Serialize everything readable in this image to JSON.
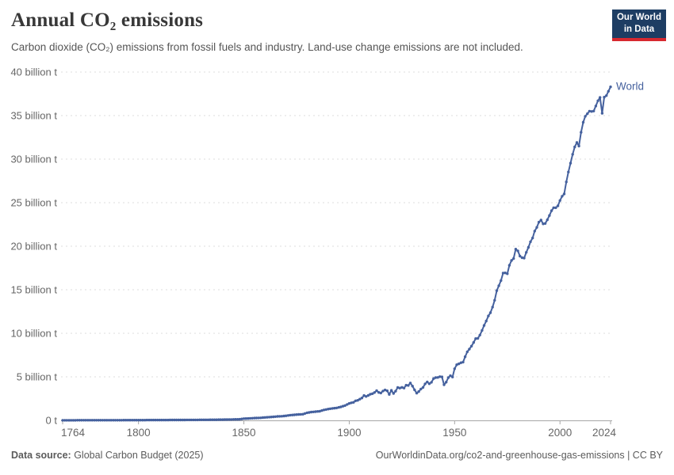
{
  "header": {
    "title": "Annual CO₂ emissions",
    "subtitle": "Carbon dioxide (CO₂) emissions from fossil fuels and industry. Land-use change emissions are not included.",
    "logo": {
      "line1": "Our World",
      "line2": "in Data",
      "bg_color": "#1d3d63",
      "accent_color": "#d7282f"
    }
  },
  "footer": {
    "source_label": "Data source:",
    "source_value": " Global Carbon Budget (2025)",
    "link": "OurWorldinData.org/co2-and-greenhouse-gas-emissions | CC BY"
  },
  "chart_data": {
    "type": "line",
    "title": "Annual CO₂ emissions",
    "xlabel": "",
    "ylabel": "",
    "xlim": [
      1764,
      2024
    ],
    "ylim": [
      0,
      40
    ],
    "grid": "horizontal-dashed",
    "legend_position": "end-of-line-label",
    "x_ticks": [
      1764,
      1800,
      1850,
      1900,
      1950,
      2000,
      2024
    ],
    "y_ticks": [
      0,
      5,
      10,
      15,
      20,
      25,
      30,
      35,
      40
    ],
    "y_tick_labels": [
      "0 t",
      "5 billion t",
      "10 billion t",
      "15 billion t",
      "20 billion t",
      "25 billion t",
      "30 billion t",
      "35 billion t",
      "40 billion t"
    ],
    "unit": "billion tonnes CO₂",
    "series": [
      {
        "name": "World",
        "color": "#45619E",
        "points": [
          [
            1764,
            0.012
          ],
          [
            1768,
            0.013
          ],
          [
            1772,
            0.014
          ],
          [
            1776,
            0.015
          ],
          [
            1780,
            0.016
          ],
          [
            1784,
            0.018
          ],
          [
            1788,
            0.02
          ],
          [
            1792,
            0.022
          ],
          [
            1796,
            0.026
          ],
          [
            1800,
            0.03
          ],
          [
            1804,
            0.032
          ],
          [
            1808,
            0.034
          ],
          [
            1812,
            0.038
          ],
          [
            1816,
            0.042
          ],
          [
            1820,
            0.047
          ],
          [
            1824,
            0.053
          ],
          [
            1828,
            0.058
          ],
          [
            1832,
            0.065
          ],
          [
            1836,
            0.073
          ],
          [
            1840,
            0.084
          ],
          [
            1844,
            0.1
          ],
          [
            1848,
            0.13
          ],
          [
            1850,
            0.197
          ],
          [
            1852,
            0.22
          ],
          [
            1854,
            0.25
          ],
          [
            1856,
            0.27
          ],
          [
            1858,
            0.29
          ],
          [
            1860,
            0.34
          ],
          [
            1862,
            0.37
          ],
          [
            1864,
            0.41
          ],
          [
            1866,
            0.45
          ],
          [
            1868,
            0.47
          ],
          [
            1870,
            0.53
          ],
          [
            1872,
            0.6
          ],
          [
            1874,
            0.64
          ],
          [
            1876,
            0.68
          ],
          [
            1878,
            0.71
          ],
          [
            1880,
            0.87
          ],
          [
            1882,
            0.95
          ],
          [
            1884,
            1.0
          ],
          [
            1886,
            1.05
          ],
          [
            1888,
            1.2
          ],
          [
            1890,
            1.3
          ],
          [
            1892,
            1.37
          ],
          [
            1894,
            1.43
          ],
          [
            1896,
            1.55
          ],
          [
            1898,
            1.7
          ],
          [
            1900,
            1.95
          ],
          [
            1901,
            2.02
          ],
          [
            1902,
            2.07
          ],
          [
            1903,
            2.25
          ],
          [
            1904,
            2.3
          ],
          [
            1905,
            2.44
          ],
          [
            1906,
            2.57
          ],
          [
            1907,
            2.85
          ],
          [
            1908,
            2.75
          ],
          [
            1909,
            2.86
          ],
          [
            1910,
            3.0
          ],
          [
            1911,
            3.06
          ],
          [
            1912,
            3.2
          ],
          [
            1913,
            3.41
          ],
          [
            1914,
            3.21
          ],
          [
            1915,
            3.15
          ],
          [
            1916,
            3.37
          ],
          [
            1917,
            3.49
          ],
          [
            1918,
            3.4
          ],
          [
            1919,
            2.98
          ],
          [
            1920,
            3.45
          ],
          [
            1921,
            3.09
          ],
          [
            1922,
            3.35
          ],
          [
            1923,
            3.78
          ],
          [
            1924,
            3.71
          ],
          [
            1925,
            3.79
          ],
          [
            1926,
            3.71
          ],
          [
            1927,
            4.04
          ],
          [
            1928,
            4.01
          ],
          [
            1929,
            4.29
          ],
          [
            1930,
            3.94
          ],
          [
            1931,
            3.51
          ],
          [
            1932,
            3.13
          ],
          [
            1933,
            3.31
          ],
          [
            1934,
            3.6
          ],
          [
            1935,
            3.78
          ],
          [
            1936,
            4.19
          ],
          [
            1937,
            4.42
          ],
          [
            1938,
            4.21
          ],
          [
            1939,
            4.37
          ],
          [
            1940,
            4.8
          ],
          [
            1941,
            4.91
          ],
          [
            1942,
            4.93
          ],
          [
            1943,
            5.02
          ],
          [
            1944,
            4.99
          ],
          [
            1945,
            4.09
          ],
          [
            1946,
            4.39
          ],
          [
            1947,
            4.91
          ],
          [
            1948,
            5.13
          ],
          [
            1949,
            4.98
          ],
          [
            1950,
            5.93
          ],
          [
            1951,
            6.39
          ],
          [
            1952,
            6.49
          ],
          [
            1953,
            6.62
          ],
          [
            1954,
            6.69
          ],
          [
            1955,
            7.31
          ],
          [
            1956,
            7.87
          ],
          [
            1957,
            8.18
          ],
          [
            1958,
            8.53
          ],
          [
            1959,
            8.95
          ],
          [
            1960,
            9.39
          ],
          [
            1961,
            9.42
          ],
          [
            1962,
            9.79
          ],
          [
            1963,
            10.33
          ],
          [
            1964,
            10.9
          ],
          [
            1965,
            11.41
          ],
          [
            1966,
            11.99
          ],
          [
            1967,
            12.36
          ],
          [
            1968,
            13.01
          ],
          [
            1969,
            13.79
          ],
          [
            1970,
            14.9
          ],
          [
            1971,
            15.46
          ],
          [
            1972,
            16.05
          ],
          [
            1973,
            16.92
          ],
          [
            1974,
            16.94
          ],
          [
            1975,
            16.84
          ],
          [
            1976,
            17.81
          ],
          [
            1977,
            18.36
          ],
          [
            1978,
            18.58
          ],
          [
            1979,
            19.66
          ],
          [
            1980,
            19.46
          ],
          [
            1981,
            18.86
          ],
          [
            1982,
            18.68
          ],
          [
            1983,
            18.64
          ],
          [
            1984,
            19.29
          ],
          [
            1985,
            19.86
          ],
          [
            1986,
            20.51
          ],
          [
            1987,
            20.95
          ],
          [
            1988,
            21.74
          ],
          [
            1989,
            22.16
          ],
          [
            1990,
            22.76
          ],
          [
            1991,
            23.0
          ],
          [
            1992,
            22.56
          ],
          [
            1993,
            22.61
          ],
          [
            1994,
            23.04
          ],
          [
            1995,
            23.53
          ],
          [
            1996,
            24.08
          ],
          [
            1997,
            24.42
          ],
          [
            1998,
            24.42
          ],
          [
            1999,
            24.64
          ],
          [
            2000,
            25.25
          ],
          [
            2001,
            25.74
          ],
          [
            2002,
            26.0
          ],
          [
            2003,
            27.38
          ],
          [
            2004,
            28.52
          ],
          [
            2005,
            29.54
          ],
          [
            2006,
            30.55
          ],
          [
            2007,
            31.4
          ],
          [
            2008,
            31.91
          ],
          [
            2009,
            31.5
          ],
          [
            2010,
            33.08
          ],
          [
            2011,
            34.23
          ],
          [
            2012,
            34.92
          ],
          [
            2013,
            35.22
          ],
          [
            2014,
            35.51
          ],
          [
            2015,
            35.47
          ],
          [
            2016,
            35.52
          ],
          [
            2017,
            36.1
          ],
          [
            2018,
            36.7
          ],
          [
            2019,
            37.08
          ],
          [
            2020,
            35.26
          ],
          [
            2021,
            37.12
          ],
          [
            2022,
            37.29
          ],
          [
            2023,
            37.79
          ],
          [
            2024,
            38.3
          ]
        ]
      }
    ]
  },
  "style": {
    "axis_label_color": "#666666",
    "gridline_color": "#dcdcdc",
    "axis_line_color": "#a7a7a7",
    "world_label_color": "#45619E"
  }
}
